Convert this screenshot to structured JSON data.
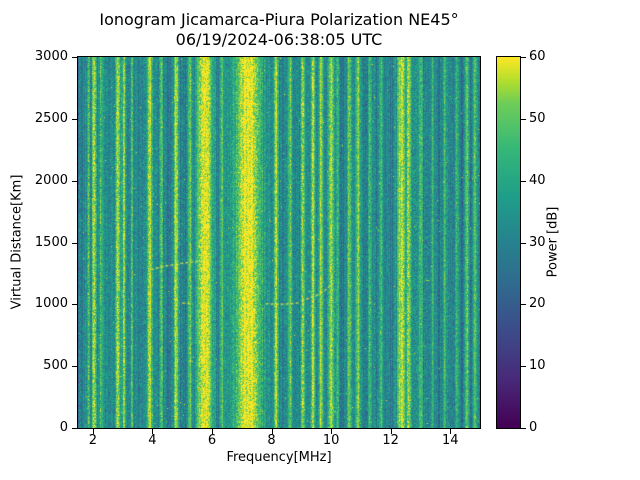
{
  "chart_data": {
    "type": "heatmap",
    "title": "Ionogram Jicamarca-Piura Polarization NE45°",
    "subtitle": "06/19/2024-06:38:05 UTC",
    "xlabel": "Frequency[MHz]",
    "ylabel": "Virtual Distance[Km]",
    "xlim": [
      1.5,
      15.0
    ],
    "ylim": [
      0,
      3000
    ],
    "xticks": [
      2,
      4,
      6,
      8,
      10,
      12,
      14
    ],
    "yticks": [
      0,
      500,
      1000,
      1500,
      2000,
      2500,
      3000
    ],
    "grid": false,
    "colorbar": {
      "label": "Power [dB]",
      "min": 0,
      "max": 60,
      "ticks": [
        0,
        10,
        20,
        30,
        40,
        50,
        60
      ],
      "colormap": "viridis"
    },
    "colormap_stops": [
      [
        0.0,
        "#440154"
      ],
      [
        0.125,
        "#482878"
      ],
      [
        0.25,
        "#3e4989"
      ],
      [
        0.375,
        "#31688e"
      ],
      [
        0.5,
        "#26828e"
      ],
      [
        0.625,
        "#1f9e89"
      ],
      [
        0.75,
        "#35b779"
      ],
      [
        0.875,
        "#6dcd59"
      ],
      [
        0.9375,
        "#b4de2c"
      ],
      [
        1.0,
        "#fde725"
      ]
    ],
    "background_power_db": {
      "mean": 32,
      "noise": 8
    },
    "rfi_bands_format": [
      "freq_mhz",
      "sigma_mhz",
      "peak_db"
    ],
    "rfi_bands": [
      [
        1.84,
        0.05,
        47
      ],
      [
        2.04,
        0.05,
        60
      ],
      [
        2.27,
        0.06,
        48
      ],
      [
        2.84,
        0.05,
        58
      ],
      [
        3.04,
        0.05,
        58
      ],
      [
        3.31,
        0.04,
        48
      ],
      [
        3.92,
        0.06,
        59
      ],
      [
        4.29,
        0.05,
        50
      ],
      [
        4.79,
        0.06,
        58
      ],
      [
        5.26,
        0.05,
        50
      ],
      [
        5.76,
        0.2,
        61
      ],
      [
        6.34,
        0.05,
        50
      ],
      [
        7.21,
        0.33,
        62
      ],
      [
        8.15,
        0.06,
        58
      ],
      [
        8.62,
        0.05,
        50
      ],
      [
        9.05,
        0.05,
        52
      ],
      [
        9.39,
        0.05,
        56
      ],
      [
        9.66,
        0.05,
        56
      ],
      [
        10.0,
        0.07,
        57
      ],
      [
        10.23,
        0.04,
        50
      ],
      [
        10.6,
        0.05,
        50
      ],
      [
        10.9,
        0.05,
        55
      ],
      [
        11.3,
        0.04,
        48
      ],
      [
        11.67,
        0.04,
        47
      ],
      [
        12.35,
        0.1,
        60
      ],
      [
        12.61,
        0.06,
        56
      ],
      [
        13.02,
        0.05,
        50
      ],
      [
        13.42,
        0.04,
        47
      ],
      [
        13.82,
        0.04,
        46
      ],
      [
        14.22,
        0.04,
        46
      ],
      [
        14.56,
        0.05,
        49
      ],
      [
        14.83,
        0.05,
        50
      ]
    ],
    "echo_traces": [
      {
        "name": "oblique-echo-short",
        "points": [
          [
            5.0,
            1010
          ],
          [
            5.35,
            1005
          ]
        ]
      },
      {
        "name": "oblique-echo-trace-1",
        "points": [
          [
            3.95,
            1280
          ],
          [
            4.45,
            1310
          ],
          [
            4.95,
            1330
          ],
          [
            5.45,
            1345
          ],
          [
            5.95,
            1355
          ]
        ]
      },
      {
        "name": "oblique-echo-trace-2-flat",
        "points": [
          [
            7.8,
            1005
          ],
          [
            8.35,
            1000
          ],
          [
            8.9,
            1010
          ]
        ]
      },
      {
        "name": "oblique-echo-trace-2-rise",
        "points": [
          [
            9.0,
            1030
          ],
          [
            9.45,
            1065
          ],
          [
            9.8,
            1115
          ],
          [
            10.05,
            1165
          ]
        ]
      }
    ]
  }
}
